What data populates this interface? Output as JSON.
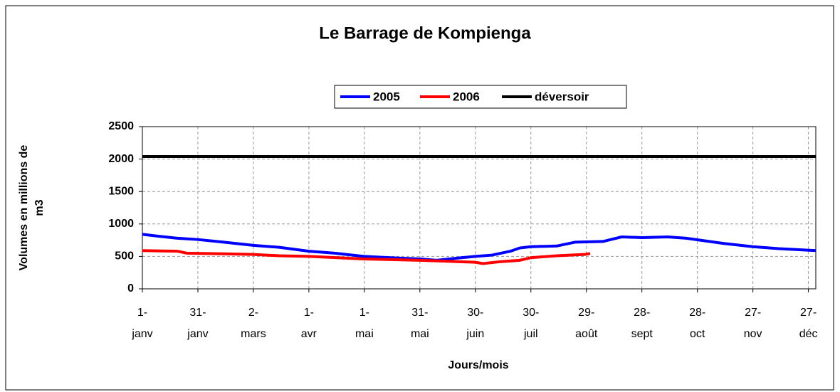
{
  "chart_data": {
    "type": "line",
    "title": "Le Barrage de Kompienga",
    "x_label": "Jours/mois",
    "y_label": "Volumes en millions de m3",
    "xlim": [
      1,
      365
    ],
    "xticks": [
      {
        "value": 1,
        "label": "1-janv"
      },
      {
        "value": 31,
        "label": "31-janv"
      },
      {
        "value": 61,
        "label": "2-mars"
      },
      {
        "value": 91,
        "label": "1-avr"
      },
      {
        "value": 121,
        "label": "1-mai"
      },
      {
        "value": 151,
        "label": "31-mai"
      },
      {
        "value": 181,
        "label": "30-juin"
      },
      {
        "value": 211,
        "label": "30-juil"
      },
      {
        "value": 241,
        "label": "29-août"
      },
      {
        "value": 271,
        "label": "28-sept"
      },
      {
        "value": 301,
        "label": "28-oct"
      },
      {
        "value": 331,
        "label": "27-nov"
      },
      {
        "value": 361,
        "label": "27-déc"
      }
    ],
    "ylim": [
      0,
      2500
    ],
    "yticks": [
      0,
      500,
      1000,
      1500,
      2000,
      2500
    ],
    "grid": true,
    "legend": "top",
    "series": [
      {
        "name": "2005",
        "color": "#0000ff",
        "x": [
          1,
          10,
          20,
          31,
          45,
          61,
          75,
          91,
          105,
          121,
          135,
          151,
          160,
          170,
          181,
          190,
          200,
          205,
          211,
          225,
          235,
          250,
          260,
          271,
          285,
          295,
          305,
          315,
          331,
          345,
          365
        ],
        "values": [
          840,
          810,
          780,
          760,
          720,
          670,
          640,
          580,
          550,
          500,
          480,
          460,
          440,
          470,
          500,
          520,
          580,
          630,
          650,
          660,
          720,
          730,
          800,
          790,
          800,
          780,
          740,
          700,
          650,
          620,
          590
        ]
      },
      {
        "name": "2006",
        "color": "#ff0000",
        "x": [
          1,
          20,
          25,
          45,
          61,
          75,
          91,
          121,
          151,
          181,
          185,
          195,
          205,
          211,
          225,
          240,
          243
        ],
        "values": [
          590,
          580,
          550,
          540,
          530,
          510,
          500,
          460,
          440,
          410,
          390,
          420,
          440,
          480,
          510,
          530,
          545
        ]
      },
      {
        "name": "déversoir",
        "color": "#000000",
        "x": [
          1,
          365
        ],
        "values": [
          2040,
          2040
        ]
      }
    ]
  }
}
